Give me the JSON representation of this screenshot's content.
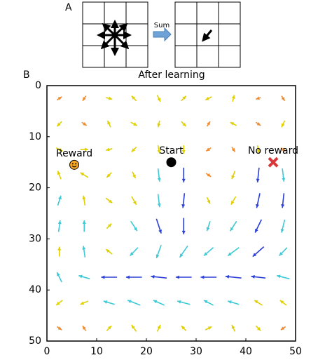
{
  "panel_labels": [
    "A",
    "B"
  ],
  "panel_a": {
    "operation": "Sum"
  },
  "chart_data": {
    "type": "quiver",
    "title": "After learning",
    "x": [
      2.5,
      7.5,
      12.5,
      17.5,
      22.5,
      27.5,
      32.5,
      37.5,
      42.5,
      47.5
    ],
    "y": [
      2.5,
      7.5,
      12.5,
      17.5,
      22.5,
      27.5,
      32.5,
      37.5,
      42.5,
      47.5
    ],
    "u": [
      [
        0.3,
        -0.2,
        0.4,
        -0.3,
        0.2,
        0.3,
        -0.4,
        0.1,
        -0.3,
        0.2
      ],
      [
        -0.3,
        0.3,
        -0.2,
        0.4,
        -0.1,
        0.3,
        0.2,
        -0.4,
        0.3,
        -0.2
      ],
      [
        0.4,
        0.5,
        -0.4,
        -0.3,
        0.1,
        0.0,
        -0.3,
        0.2,
        0.1,
        0.3
      ],
      [
        -0.2,
        -0.5,
        -0.3,
        0.2,
        0.1,
        0.0,
        0.3,
        -0.2,
        -0.1,
        0.1
      ],
      [
        0.2,
        -0.1,
        0.4,
        0.3,
        0.1,
        -0.1,
        0.2,
        -0.3,
        -0.2,
        -0.1
      ],
      [
        0.1,
        0.0,
        0.3,
        0.4,
        0.3,
        0.0,
        -0.2,
        -0.4,
        -0.4,
        -0.2
      ],
      [
        0.0,
        -0.1,
        -0.4,
        -0.5,
        -0.3,
        -0.5,
        -0.6,
        -0.7,
        -0.7,
        -0.5
      ],
      [
        -0.3,
        -0.7,
        -1.0,
        -1.0,
        -1.0,
        -1.0,
        -1.0,
        -1.0,
        -0.9,
        -0.8
      ],
      [
        -0.4,
        -0.5,
        -0.7,
        -0.8,
        -0.7,
        -0.8,
        -0.6,
        -0.7,
        -0.5,
        -0.4
      ],
      [
        0.3,
        -0.2,
        0.3,
        -0.3,
        0.2,
        -0.3,
        0.4,
        -0.2,
        0.3,
        -0.3
      ]
    ],
    "v": [
      [
        -0.2,
        0.3,
        0.1,
        -0.3,
        0.4,
        -0.3,
        0.2,
        -0.4,
        0.1,
        0.3
      ],
      [
        0.3,
        0.2,
        -0.4,
        0.2,
        0.4,
        0.3,
        -0.3,
        -0.2,
        0.2,
        0.4
      ],
      [
        0.2,
        0.0,
        0.1,
        0.3,
        0.5,
        0.5,
        0.2,
        0.3,
        0.5,
        0.2
      ],
      [
        -0.5,
        -0.3,
        0.3,
        0.4,
        0.8,
        0.9,
        0.2,
        0.5,
        0.9,
        0.8
      ],
      [
        -0.6,
        -0.6,
        0.3,
        0.5,
        0.8,
        0.9,
        0.4,
        0.5,
        0.9,
        0.9
      ],
      [
        -0.7,
        -0.7,
        -0.3,
        0.6,
        0.9,
        1.0,
        0.6,
        0.6,
        0.8,
        0.8
      ],
      [
        -0.6,
        -0.7,
        -0.3,
        0.5,
        0.8,
        0.7,
        0.5,
        0.5,
        0.6,
        0.5
      ],
      [
        -0.6,
        -0.2,
        0.0,
        0.0,
        -0.1,
        0.0,
        0.0,
        -0.1,
        -0.1,
        -0.2
      ],
      [
        0.3,
        0.2,
        -0.2,
        -0.3,
        -0.3,
        -0.2,
        -0.3,
        -0.2,
        -0.3,
        -0.3
      ],
      [
        0.2,
        -0.3,
        -0.3,
        -0.4,
        -0.4,
        -0.3,
        -0.2,
        -0.4,
        0.3,
        0.2
      ]
    ],
    "colormap": [
      "#d7191c",
      "#f28a2e",
      "#e0d000",
      "#3ec9d6",
      "#2b3fd6"
    ],
    "markers": [
      {
        "name": "Reward",
        "x": 5.5,
        "y": 15.5,
        "color": "#f5a623"
      },
      {
        "name": "Start",
        "x": 25,
        "y": 15,
        "color": "#000000"
      },
      {
        "name": "No reward",
        "x": 45.5,
        "y": 15,
        "color": "#d9383a"
      }
    ],
    "xlim": [
      0,
      50
    ],
    "ylim": [
      50,
      0
    ],
    "xticks": [
      0,
      10,
      20,
      30,
      40,
      50
    ],
    "yticks": [
      0,
      10,
      20,
      30,
      40,
      50
    ]
  }
}
